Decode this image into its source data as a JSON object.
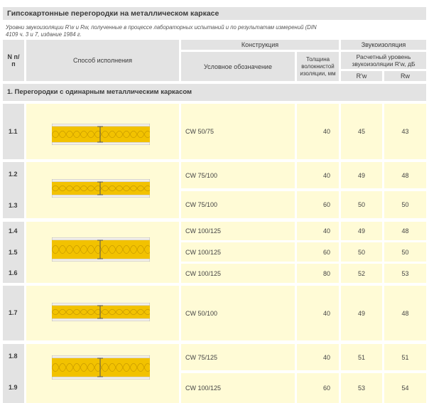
{
  "title": "Гипсокартонные перегородки на металлическом каркасе",
  "note": "Уровни звукоизоляции R'w и Rw, полученные в процессе лабораторных испытаний и по результатам измерений (DIN 4109 ч. 3 и 7, издание 1984 г.",
  "header": {
    "num": "N п/п",
    "method": "Способ исполнения",
    "construction": "Конструкция",
    "designation": "Условное обозначение",
    "thickness": "Толщина волокнистой изоляции, мм",
    "sound": "Звукоизоляция",
    "level": "Расчетный уровень звукоизоляции R'w, дБ",
    "rw1": "R'w",
    "rw2": "Rw"
  },
  "section1": "1. Перегородки с одинарным металлическим каркасом",
  "rows": [
    {
      "num": "1.1",
      "code": "CW 50/75",
      "thick": "40",
      "r1": "45",
      "r2": "43"
    },
    {
      "num": "1.2",
      "code": "CW 75/100",
      "thick": "40",
      "r1": "49",
      "r2": "48"
    },
    {
      "num": "1.3",
      "code": "CW 75/100",
      "thick": "60",
      "r1": "50",
      "r2": "50"
    },
    {
      "num": "1.4",
      "code": "CW 100/125",
      "thick": "40",
      "r1": "49",
      "r2": "48"
    },
    {
      "num": "1.5",
      "code": "CW 100/125",
      "thick": "60",
      "r1": "50",
      "r2": "50"
    },
    {
      "num": "1.6",
      "code": "CW 100/125",
      "thick": "80",
      "r1": "52",
      "r2": "53"
    },
    {
      "num": "1.7",
      "code": "CW 50/100",
      "thick": "40",
      "r1": "49",
      "r2": "48"
    },
    {
      "num": "1.8",
      "code": "CW 75/125",
      "thick": "40",
      "r1": "51",
      "r2": "51"
    },
    {
      "num": "1.9",
      "code": "CW 100/125",
      "thick": "60",
      "r1": "53",
      "r2": "54"
    }
  ]
}
